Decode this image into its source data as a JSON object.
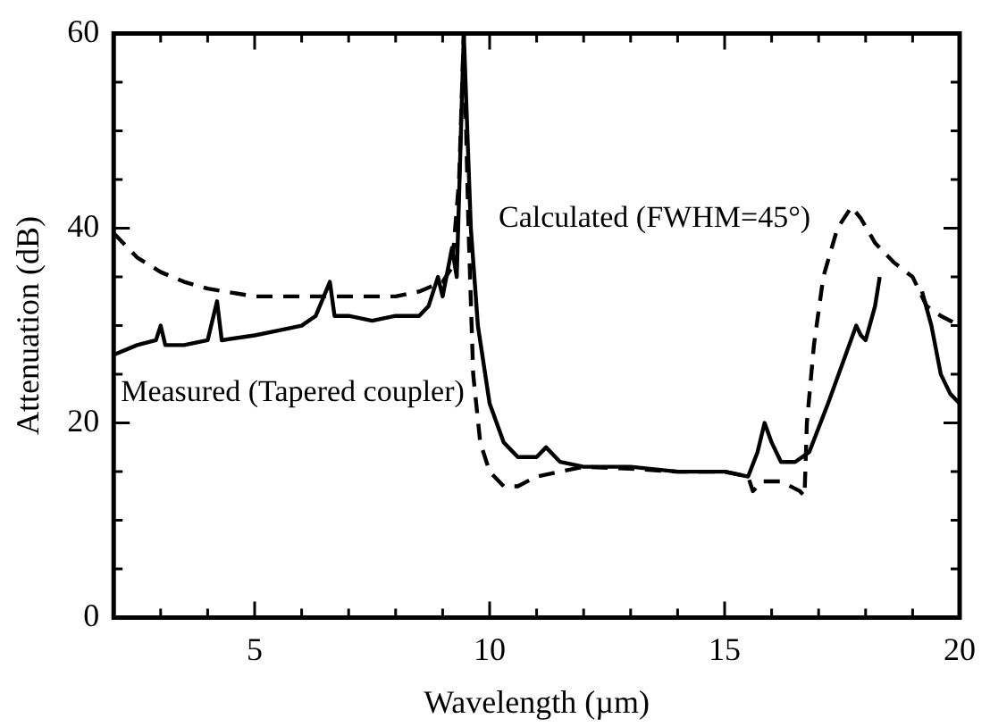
{
  "chart_data": {
    "type": "line",
    "xlabel": "Wavelength (µm)",
    "ylabel": "Attenuation (dB)",
    "xlim": [
      2,
      20
    ],
    "xticks": [
      {
        "value": 2,
        "label": null
      },
      {
        "value": 3,
        "label": null
      },
      {
        "value": 4,
        "label": null
      },
      5,
      {
        "value": 6,
        "label": null
      },
      {
        "value": 7,
        "label": null
      },
      {
        "value": 8,
        "label": null
      },
      {
        "value": 9,
        "label": null
      },
      10,
      {
        "value": 11,
        "label": null
      },
      {
        "value": 12,
        "label": null
      },
      {
        "value": 13,
        "label": null
      },
      {
        "value": 14,
        "label": null
      },
      15,
      {
        "value": 16,
        "label": null
      },
      {
        "value": 17,
        "label": null
      },
      {
        "value": 18,
        "label": null
      },
      {
        "value": 19,
        "label": null
      },
      20
    ],
    "ylim": [
      0,
      60
    ],
    "yticks": [
      0,
      {
        "value": 5,
        "label": null
      },
      {
        "value": 10,
        "label": null
      },
      {
        "value": 15,
        "label": null
      },
      20,
      {
        "value": 25,
        "label": null
      },
      {
        "value": 30,
        "label": null
      },
      {
        "value": 35,
        "label": null
      },
      40,
      {
        "value": 45,
        "label": null
      },
      {
        "value": 50,
        "label": null
      },
      {
        "value": 55,
        "label": null
      },
      60
    ],
    "grid": false,
    "legend": false,
    "marker": "none",
    "series": [
      {
        "name": "Measured (Tapered coupler)",
        "color": "#000000",
        "line_style": "solid",
        "x": [
          2.0,
          2.5,
          2.9,
          3.0,
          3.1,
          3.5,
          4.0,
          4.2,
          4.3,
          5,
          5.5,
          6,
          6.3,
          6.6,
          6.7,
          7,
          7.5,
          8,
          8.5,
          8.7,
          8.9,
          9.0,
          9.2,
          9.3,
          9.45,
          9.6,
          9.75,
          10.0,
          10.3,
          10.6,
          11.0,
          11.2,
          11.5,
          12,
          13,
          14,
          15,
          15.5,
          15.7,
          15.85,
          16.0,
          16.2,
          16.5,
          16.8,
          17.2,
          17.5,
          17.8,
          17.9,
          18.0,
          18.2,
          18.3,
          18.7,
          19.2,
          19.4,
          19.6,
          19.8,
          20
        ],
        "values": [
          27,
          28,
          28.5,
          30,
          28,
          28,
          28.5,
          32.5,
          28.5,
          29,
          29.5,
          30,
          31,
          34.5,
          31,
          31,
          30.5,
          31,
          31,
          32,
          35,
          33,
          38,
          35,
          60,
          40,
          30,
          22,
          18,
          16.5,
          16.5,
          17.5,
          16,
          15.5,
          15.5,
          15,
          15,
          14.5,
          17,
          20,
          18,
          16,
          16,
          17,
          22,
          26,
          30,
          29,
          28.5,
          32,
          35,
          null,
          33.5,
          30,
          25,
          23,
          22
        ]
      },
      {
        "name": "Calculated (FWHM=45°)",
        "color": "#000000",
        "line_style": "dashed",
        "x": [
          2.0,
          2.5,
          3,
          3.5,
          4,
          5,
          6,
          7,
          8,
          8.5,
          9,
          9.2,
          9.35,
          9.45,
          9.55,
          9.65,
          9.8,
          10.0,
          10.3,
          10.6,
          11,
          11.5,
          12,
          13,
          14,
          15,
          15.5,
          15.6,
          15.8,
          16.2,
          16.6,
          16.7,
          16.75,
          16.9,
          17.1,
          17.4,
          17.7,
          17.9,
          18.2,
          18.6,
          19.0,
          19.3,
          19.6,
          20
        ],
        "values": [
          39.5,
          37,
          35.5,
          34.5,
          33.8,
          33,
          33,
          33,
          33,
          33.5,
          34.5,
          36,
          45,
          60,
          40,
          25,
          18,
          15,
          13.5,
          13.5,
          14.5,
          15,
          15.5,
          15.3,
          15,
          15,
          14.5,
          13,
          14,
          14,
          13,
          12.5,
          20,
          28,
          35,
          40,
          42.2,
          41,
          38.5,
          36.5,
          35,
          32,
          31,
          30
        ]
      }
    ]
  }
}
